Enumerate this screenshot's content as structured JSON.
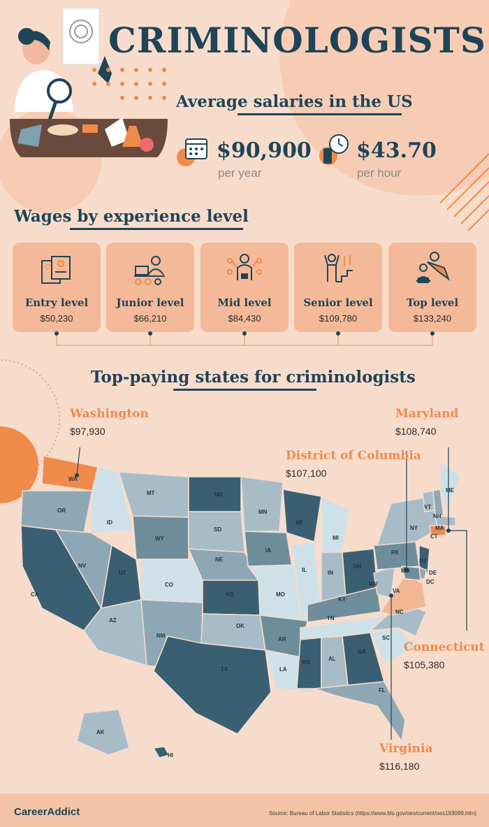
{
  "header": {
    "title": "CRIMINOLOGISTS",
    "subtitle": "Average salaries in the US"
  },
  "salaries": {
    "yearly_value": "$90,900",
    "yearly_unit": "per year",
    "hourly_value": "$43.70",
    "hourly_unit": "per hour"
  },
  "experience": {
    "heading": "Wages by experience level",
    "levels": [
      {
        "label": "Entry level",
        "value": "$50,230"
      },
      {
        "label": "Junior level",
        "value": "$66,210"
      },
      {
        "label": "Mid level",
        "value": "$84,430"
      },
      {
        "label": "Senior level",
        "value": "$109,780"
      },
      {
        "label": "Top level",
        "value": "$133,240"
      }
    ]
  },
  "states": {
    "heading": "Top-paying states for criminologists",
    "callouts": [
      {
        "name": "Washington",
        "value": "$97,930"
      },
      {
        "name": "Maryland",
        "value": "$108,740"
      },
      {
        "name": "District of Columbia",
        "value": "$107,100"
      },
      {
        "name": "Connecticut",
        "value": "$105,380"
      },
      {
        "name": "Virginia",
        "value": "$116,180"
      }
    ],
    "abbreviations": [
      "WA",
      "OR",
      "CA",
      "ID",
      "MT",
      "WY",
      "NV",
      "UT",
      "AZ",
      "CO",
      "NM",
      "ND",
      "SD",
      "NE",
      "KS",
      "OK",
      "TX",
      "MN",
      "IA",
      "MO",
      "AR",
      "LA",
      "WI",
      "IL",
      "MI",
      "IN",
      "OH",
      "KY",
      "TN",
      "MS",
      "AL",
      "GA",
      "FL",
      "SC",
      "NC",
      "VA",
      "WV",
      "PA",
      "NY",
      "VT",
      "NH",
      "ME",
      "MA",
      "CT",
      "NJ",
      "DE",
      "MD",
      "DC",
      "AK",
      "HI"
    ]
  },
  "footer": {
    "brand": "CareerAddict",
    "source": "Source: Bureau of Labor Statistics (https://www.bls.gov/oes/current/oes193099.htm)"
  },
  "colors": {
    "background": "#f8dccb",
    "navy": "#1f4457",
    "orange": "#ef8a4b",
    "card": "#f4b998"
  }
}
